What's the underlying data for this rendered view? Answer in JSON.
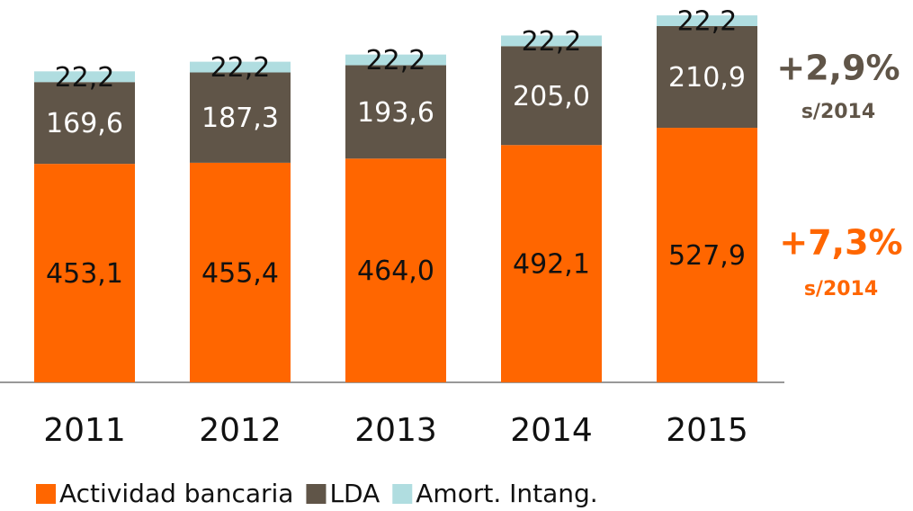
{
  "chart_data": {
    "type": "stacked_bar",
    "categories": [
      "2011",
      "2012",
      "2013",
      "2014",
      "2015"
    ],
    "series": [
      {
        "name": "Actividad bancaria",
        "color": "#ff6600",
        "label_color": "#111111",
        "values": [
          453.1,
          455.4,
          464.0,
          492.1,
          527.9
        ],
        "value_labels": [
          "453,1",
          "455,4",
          "464,0",
          "492,1",
          "527,9"
        ]
      },
      {
        "name": "LDA",
        "color": "#605548",
        "label_color": "#ffffff",
        "values": [
          169.6,
          187.3,
          193.6,
          205.0,
          210.9
        ],
        "value_labels": [
          "169,6",
          "187,3",
          "193,6",
          "205,0",
          "210,9"
        ]
      },
      {
        "name": "Amort. Intang.",
        "color": "#b0dde0",
        "label_color": "#111111",
        "values": [
          22.2,
          22.2,
          22.2,
          22.2,
          22.2
        ],
        "value_labels": [
          "22,2",
          "22,2",
          "22,2",
          "22,2",
          "22,2"
        ]
      }
    ],
    "annotations": [
      {
        "text": "+2,9%",
        "sub": "s/2014",
        "color": "#605548"
      },
      {
        "text": "+7,3%",
        "sub": "s/2014",
        "color": "#ff6600"
      }
    ],
    "legend": "bottom"
  }
}
